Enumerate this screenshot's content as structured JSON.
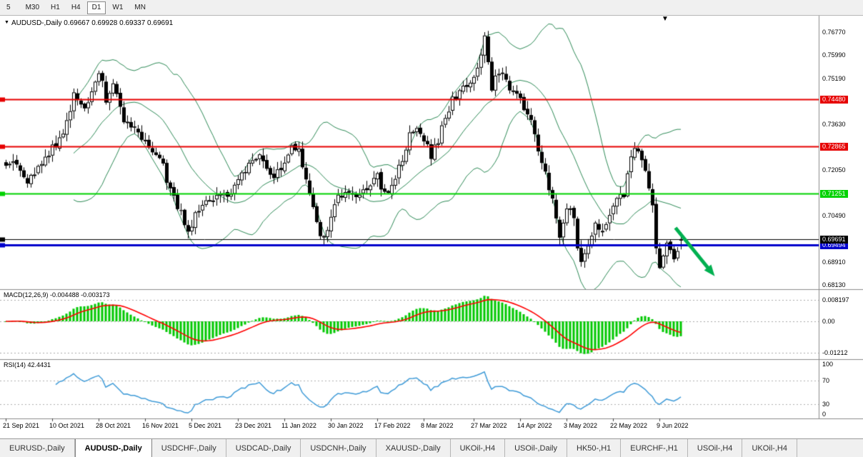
{
  "toolbar": {
    "timeframes": [
      {
        "label": "5",
        "active": false
      },
      {
        "label": "M30",
        "active": false
      },
      {
        "label": "H1",
        "active": false
      },
      {
        "label": "H4",
        "active": false
      },
      {
        "label": "D1",
        "active": true
      },
      {
        "label": "W1",
        "active": false
      },
      {
        "label": "MN",
        "active": false
      }
    ]
  },
  "chart": {
    "title_icon": "▼",
    "title": "AUDUSD-,Daily",
    "ohlc_readout": "0.69667 0.69928 0.69337 0.69691",
    "object_marker": "▼"
  },
  "chart_data": {
    "type": "candlestick",
    "symbol": "AUDUSD",
    "timeframe": "Daily",
    "current_ohlc": {
      "open": 0.69667,
      "high": 0.69928,
      "low": 0.69337,
      "close": 0.69691
    },
    "candle_count": 190,
    "price_axis": {
      "top_value": 0.77,
      "bottom_value": 0.68,
      "labels": [
        {
          "text": "0.76770",
          "value": 0.7677
        },
        {
          "text": "0.75990",
          "value": 0.7599
        },
        {
          "text": "0.75190",
          "value": 0.7519
        },
        {
          "text": "0.73630",
          "value": 0.7363
        },
        {
          "text": "0.72050",
          "value": 0.7205
        },
        {
          "text": "0.70490",
          "value": 0.7049
        },
        {
          "text": "0.68910",
          "value": 0.6891
        },
        {
          "text": "0.68130",
          "value": 0.6813
        }
      ]
    },
    "hlines": [
      {
        "value": 0.7448,
        "label": "0.74480",
        "color": "#e60000",
        "width": 2
      },
      {
        "value": 0.72865,
        "label": "0.72865",
        "color": "#e60000",
        "width": 2
      },
      {
        "value": 0.71251,
        "label": "0.71251",
        "color": "#00d200",
        "width": 2
      },
      {
        "value": 0.69494,
        "label": "0.69494",
        "color": "#0000cc",
        "width": 3
      },
      {
        "value": 0.69691,
        "label": "0.69691",
        "color": "#000000",
        "width": 1,
        "role": "current-price"
      }
    ],
    "bollinger": {
      "period": 20,
      "deviation": 2,
      "color": "#2e8b57"
    },
    "price_waypoints": [
      [
        0,
        0.7235
      ],
      [
        3,
        0.7225
      ],
      [
        6,
        0.7175
      ],
      [
        9,
        0.7215
      ],
      [
        13,
        0.728
      ],
      [
        16,
        0.734
      ],
      [
        19,
        0.7465
      ],
      [
        22,
        0.741
      ],
      [
        24,
        0.748
      ],
      [
        26,
        0.7545
      ],
      [
        28,
        0.7452
      ],
      [
        30,
        0.7498
      ],
      [
        33,
        0.7385
      ],
      [
        36,
        0.7355
      ],
      [
        39,
        0.7308
      ],
      [
        42,
        0.725
      ],
      [
        44,
        0.7228
      ],
      [
        46,
        0.713
      ],
      [
        48,
        0.7085
      ],
      [
        51,
        0.6998
      ],
      [
        53,
        0.7058
      ],
      [
        56,
        0.7085
      ],
      [
        60,
        0.7128
      ],
      [
        63,
        0.7108
      ],
      [
        65,
        0.7182
      ],
      [
        68,
        0.7225
      ],
      [
        71,
        0.7252
      ],
      [
        74,
        0.7178
      ],
      [
        77,
        0.7198
      ],
      [
        80,
        0.7288
      ],
      [
        82,
        0.7262
      ],
      [
        84,
        0.7182
      ],
      [
        86,
        0.7088
      ],
      [
        88,
        0.6988
      ],
      [
        90,
        0.7005
      ],
      [
        93,
        0.7118
      ],
      [
        96,
        0.7142
      ],
      [
        99,
        0.7122
      ],
      [
        102,
        0.7142
      ],
      [
        104,
        0.7188
      ],
      [
        106,
        0.7122
      ],
      [
        109,
        0.7178
      ],
      [
        111,
        0.7252
      ],
      [
        113,
        0.7318
      ],
      [
        115,
        0.7362
      ],
      [
        117,
        0.7298
      ],
      [
        119,
        0.7258
      ],
      [
        121,
        0.7308
      ],
      [
        124,
        0.7418
      ],
      [
        127,
        0.7488
      ],
      [
        129,
        0.7478
      ],
      [
        131,
        0.7518
      ],
      [
        134,
        0.765
      ],
      [
        136,
        0.7488
      ],
      [
        138,
        0.7542
      ],
      [
        140,
        0.7508
      ],
      [
        142,
        0.7462
      ],
      [
        144,
        0.7442
      ],
      [
        146,
        0.7408
      ],
      [
        148,
        0.7328
      ],
      [
        150,
        0.7238
      ],
      [
        152,
        0.7148
      ],
      [
        154,
        0.7052
      ],
      [
        155,
        0.6972
      ],
      [
        157,
        0.7088
      ],
      [
        159,
        0.7028
      ],
      [
        161,
        0.6875
      ],
      [
        163,
        0.6948
      ],
      [
        165,
        0.7032
      ],
      [
        167,
        0.6988
      ],
      [
        169,
        0.7048
      ],
      [
        171,
        0.7098
      ],
      [
        173,
        0.7122
      ],
      [
        175,
        0.7252
      ],
      [
        177,
        0.7282
      ],
      [
        179,
        0.7208
      ],
      [
        181,
        0.7072
      ],
      [
        182,
        0.6928
      ],
      [
        183,
        0.6855
      ],
      [
        185,
        0.6962
      ],
      [
        187,
        0.6898
      ],
      [
        188,
        0.6938
      ],
      [
        189,
        0.6969
      ]
    ],
    "date_axis": [
      {
        "label": "21 Sep 2021",
        "index": 0
      },
      {
        "label": "10 Oct 2021",
        "index": 13
      },
      {
        "label": "28 Oct 2021",
        "index": 26
      },
      {
        "label": "16 Nov 2021",
        "index": 39
      },
      {
        "label": "5 Dec 2021",
        "index": 52
      },
      {
        "label": "23 Dec 2021",
        "index": 65
      },
      {
        "label": "11 Jan 2022",
        "index": 78
      },
      {
        "label": "30 Jan 2022",
        "index": 91
      },
      {
        "label": "17 Feb 2022",
        "index": 104
      },
      {
        "label": "8 Mar 2022",
        "index": 117
      },
      {
        "label": "27 Mar 2022",
        "index": 131
      },
      {
        "label": "14 Apr 2022",
        "index": 144
      },
      {
        "label": "3 May 2022",
        "index": 157
      },
      {
        "label": "22 May 2022",
        "index": 170
      },
      {
        "label": "9 Jun 2022",
        "index": 183
      }
    ],
    "macd": {
      "label": "MACD(12,26,9)",
      "values_text": "-0.004488 -0.003173",
      "main_value": -0.004488,
      "signal_value": -0.003173,
      "fast": 12,
      "slow": 26,
      "signal": 9,
      "histogram_color": "#00c800",
      "signal_color": "#ff0000",
      "axis_labels": [
        {
          "text": "0.008197",
          "value": 0.008197
        },
        {
          "text": "0.00",
          "value": 0
        },
        {
          "text": "-0.01212",
          "value": -0.01212
        }
      ]
    },
    "rsi": {
      "label": "RSI(14)",
      "value_text": "42.4431",
      "value": 42.4431,
      "period": 14,
      "color": "#3f9bd8",
      "levels": [
        70,
        30
      ],
      "axis_labels": [
        {
          "text": "100",
          "value": 100
        },
        {
          "text": "70",
          "value": 70
        },
        {
          "text": "30",
          "value": 30
        },
        {
          "text": "0",
          "value": 0
        }
      ]
    },
    "trend_arrow": {
      "color": "#00b050",
      "width": 5,
      "from": {
        "index": 187.5,
        "price": 0.7008
      },
      "to": {
        "index": 198.5,
        "price": 0.6842
      }
    }
  },
  "tabs": [
    {
      "label": "EURUSD-,Daily",
      "active": false
    },
    {
      "label": "AUDUSD-,Daily",
      "active": true
    },
    {
      "label": "USDCHF-,Daily",
      "active": false
    },
    {
      "label": "USDCAD-,Daily",
      "active": false
    },
    {
      "label": "USDCNH-,Daily",
      "active": false
    },
    {
      "label": "XAUUSD-,Daily",
      "active": false
    },
    {
      "label": "UKOil-,H4",
      "active": false
    },
    {
      "label": "USOil-,Daily",
      "active": false
    },
    {
      "label": "HK50-,H1",
      "active": false
    },
    {
      "label": "EURCHF-,H1",
      "active": false
    },
    {
      "label": "USOil-,H4",
      "active": false
    },
    {
      "label": "UKOil-,H4",
      "active": false
    }
  ]
}
